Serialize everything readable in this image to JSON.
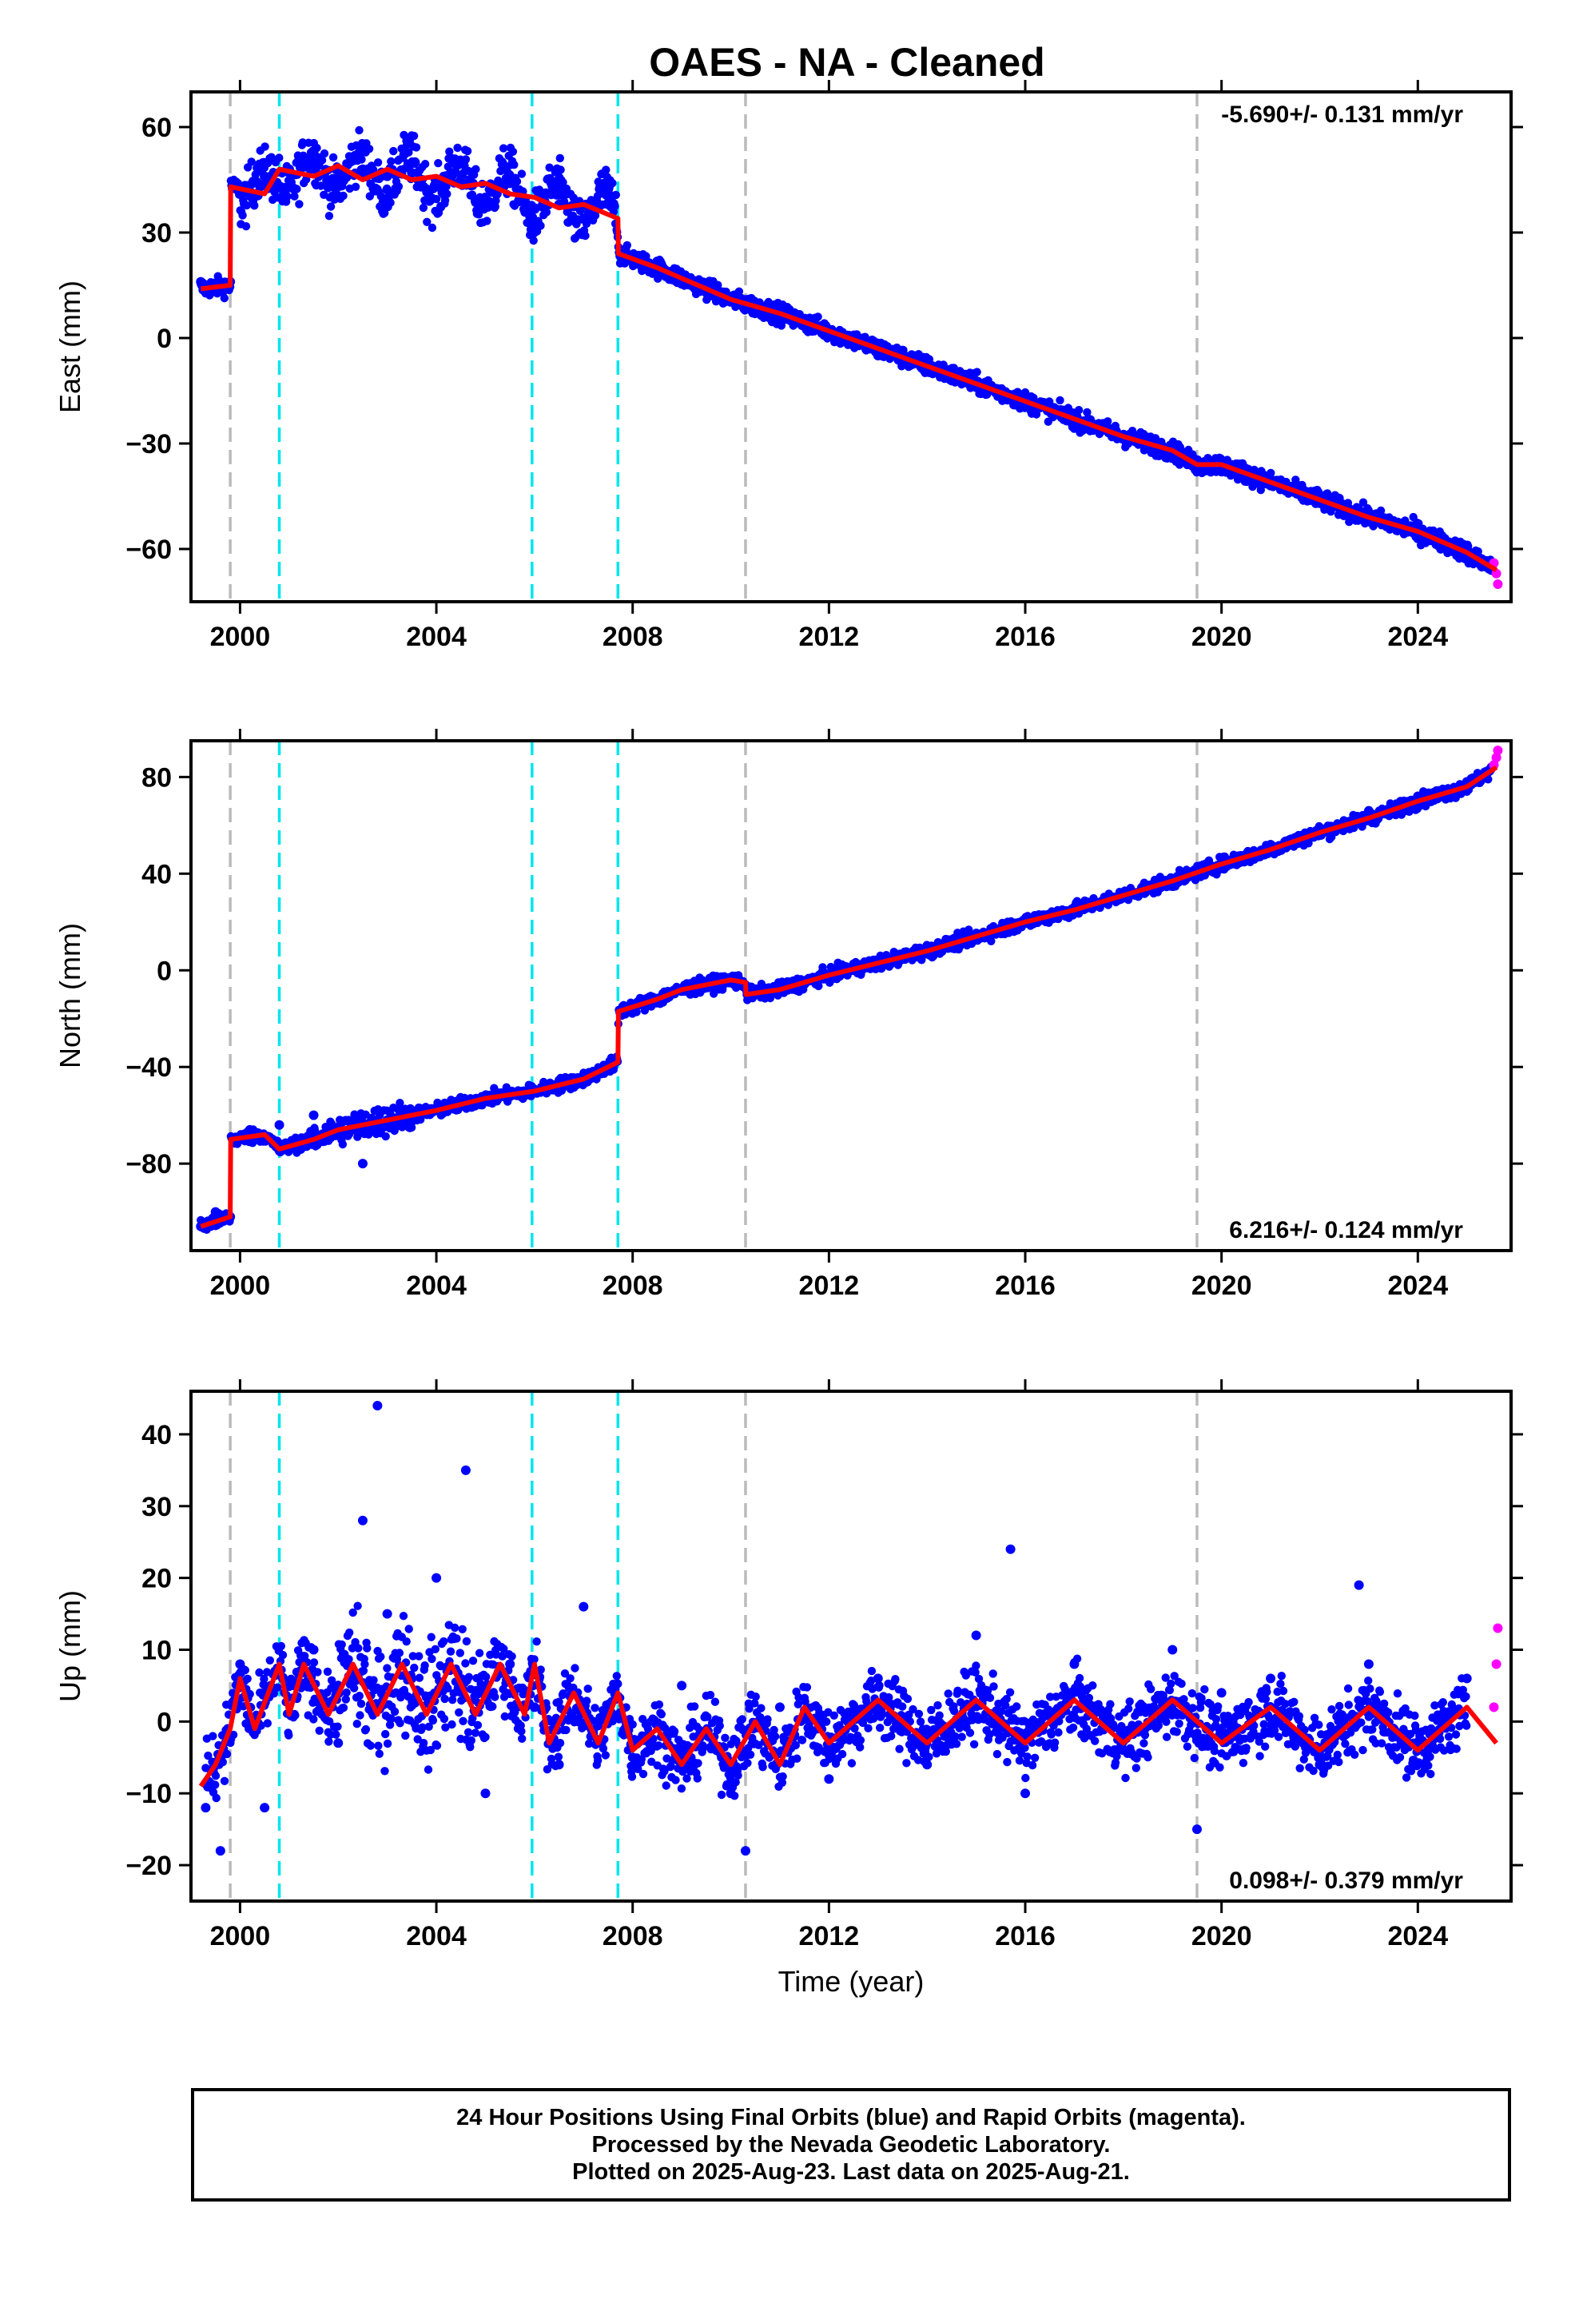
{
  "title": "OAES  - NA - Cleaned",
  "colors": {
    "final_orbits": "#0000ff",
    "rapid_orbits": "#ff00ff",
    "model": "#ff0000",
    "equipment_change": "#00e5ee",
    "other_event": "#bbbbbb"
  },
  "chart_data": [
    {
      "type": "scatter",
      "panel": "east",
      "ylabel": "East (mm)",
      "xlim": [
        1999.0,
        2025.9
      ],
      "ylim": [
        -75,
        70
      ],
      "yticks": [
        -60,
        -30,
        0,
        30,
        60
      ],
      "xticks": [
        2000,
        2004,
        2008,
        2012,
        2016,
        2020,
        2024
      ],
      "rate_text": "-5.690+/- 0.131 mm/yr",
      "rate_position": "top-right",
      "grid": false,
      "series": [
        {
          "role": "final_orbits",
          "x": [
            1999.2,
            1999.4,
            1999.6,
            1999.8,
            2000.0,
            2000.5,
            2001.0,
            2001.5,
            2002.0,
            2002.5,
            2003.0,
            2003.5,
            2004.0,
            2004.5,
            2005.0,
            2005.5,
            2006.0,
            2006.5,
            2007.0,
            2007.5,
            2007.8,
            2008.5,
            2009.0,
            2010.0,
            2011.0,
            2012.0,
            2013.0,
            2014.0,
            2015.0,
            2016.0,
            2017.0,
            2018.0,
            2019.0,
            2020.0,
            2021.0,
            2022.0,
            2023.0,
            2024.0,
            2025.0,
            2025.5
          ],
          "y": [
            16,
            14,
            15,
            16,
            43,
            46,
            48,
            50,
            45,
            48,
            46,
            47,
            43,
            45,
            40,
            44,
            37,
            38,
            34,
            38,
            25,
            20,
            16,
            11,
            6,
            1,
            -5,
            -8,
            -14,
            -19,
            -25,
            -28,
            -33,
            -38,
            -42,
            -47,
            -52,
            -57,
            -63,
            -66
          ]
        },
        {
          "role": "rapid_orbits",
          "x": [
            2025.55,
            2025.6,
            2025.63
          ],
          "y": [
            -64,
            -67,
            -70
          ]
        },
        {
          "role": "model",
          "x": [
            1999.2,
            1999.8,
            1999.81,
            2000.5,
            2000.8,
            2001.5,
            2002.0,
            2002.5,
            2003.0,
            2003.5,
            2004.0,
            2004.5,
            2005.0,
            2005.5,
            2006.0,
            2006.5,
            2007.0,
            2007.7,
            2007.71,
            2008.5,
            2009.0,
            2010.0,
            2011.0,
            2012.0,
            2013.0,
            2014.0,
            2015.0,
            2016.0,
            2017.0,
            2018.0,
            2019.0,
            2019.5,
            2020.0,
            2021.0,
            2022.0,
            2023.0,
            2024.0,
            2025.0,
            2025.6
          ],
          "y": [
            14,
            15,
            43,
            41,
            48,
            46,
            49,
            45,
            48,
            45,
            46,
            43,
            44,
            41,
            40,
            37,
            38,
            34,
            24,
            20,
            17,
            11,
            7,
            2,
            -3,
            -8,
            -13,
            -18,
            -23,
            -28,
            -32,
            -36,
            -36,
            -41,
            -46,
            -51,
            -55,
            -61,
            -66
          ]
        }
      ],
      "events": [
        {
          "type": "other_event",
          "x": 1999.8
        },
        {
          "type": "equipment_change",
          "x": 2000.8
        },
        {
          "type": "equipment_change",
          "x": 2005.95
        },
        {
          "type": "equipment_change",
          "x": 2007.7
        },
        {
          "type": "other_event",
          "x": 2010.3
        },
        {
          "type": "other_event",
          "x": 2019.5
        }
      ]
    },
    {
      "type": "scatter",
      "panel": "north",
      "ylabel": "North (mm)",
      "xlim": [
        1999.0,
        2025.9
      ],
      "ylim": [
        -116,
        95
      ],
      "yticks": [
        -80,
        -40,
        0,
        40,
        80
      ],
      "xticks": [
        2000,
        2004,
        2008,
        2012,
        2016,
        2020,
        2024
      ],
      "rate_text": "6.216+/- 0.124 mm/yr",
      "rate_position": "bottom-right",
      "grid": false,
      "series": [
        {
          "role": "final_orbits",
          "x": [
            1999.2,
            1999.5,
            1999.8,
            2000.2,
            2000.8,
            2001.5,
            2002.0,
            2002.5,
            2003.0,
            2004.0,
            2005.0,
            2006.0,
            2007.0,
            2007.6,
            2007.8,
            2008.5,
            2009.0,
            2010.0,
            2010.5,
            2011.0,
            2012.0,
            2013.0,
            2014.0,
            2015.0,
            2016.0,
            2017.0,
            2018.0,
            2019.0,
            2020.0,
            2021.0,
            2022.0,
            2023.0,
            2024.0,
            2025.0,
            2025.5
          ],
          "y": [
            -106,
            -100,
            -102,
            -66,
            -64,
            -60,
            -68,
            -80,
            -62,
            -58,
            -52,
            -50,
            -44,
            -40,
            -16,
            -12,
            -8,
            -4,
            -8,
            -6,
            -2,
            4,
            10,
            14,
            20,
            26,
            30,
            38,
            44,
            52,
            58,
            66,
            72,
            78,
            84
          ]
        },
        {
          "role": "rapid_orbits",
          "x": [
            2025.55,
            2025.6,
            2025.63
          ],
          "y": [
            85,
            88,
            91
          ]
        },
        {
          "role": "model",
          "x": [
            1999.2,
            1999.8,
            1999.81,
            2000.5,
            2000.8,
            2001.5,
            2002.0,
            2003.0,
            2004.0,
            2005.0,
            2006.0,
            2007.0,
            2007.7,
            2007.71,
            2008.5,
            2009.0,
            2010.0,
            2010.3,
            2010.31,
            2011.0,
            2012.0,
            2013.0,
            2014.0,
            2015.0,
            2016.0,
            2017.0,
            2018.0,
            2019.0,
            2020.0,
            2021.0,
            2022.0,
            2023.0,
            2024.0,
            2025.0,
            2025.6
          ],
          "y": [
            -106,
            -102,
            -70,
            -68,
            -74,
            -70,
            -66,
            -62,
            -58,
            -53,
            -50,
            -45,
            -38,
            -17,
            -12,
            -8,
            -4,
            -5,
            -10,
            -8,
            -2,
            3,
            8,
            14,
            20,
            25,
            31,
            37,
            44,
            50,
            57,
            63,
            70,
            76,
            84
          ]
        }
      ],
      "events": [
        {
          "type": "other_event",
          "x": 1999.8
        },
        {
          "type": "equipment_change",
          "x": 2000.8
        },
        {
          "type": "equipment_change",
          "x": 2005.95
        },
        {
          "type": "equipment_change",
          "x": 2007.7
        },
        {
          "type": "other_event",
          "x": 2010.3
        },
        {
          "type": "other_event",
          "x": 2019.5
        }
      ]
    },
    {
      "type": "scatter",
      "panel": "up",
      "ylabel": "Up (mm)",
      "xlabel": "Time (year)",
      "xlim": [
        1999.0,
        2025.9
      ],
      "ylim": [
        -25,
        46
      ],
      "yticks": [
        -20,
        -10,
        0,
        10,
        20,
        30,
        40
      ],
      "xticks": [
        2000,
        2004,
        2008,
        2012,
        2016,
        2020,
        2024
      ],
      "rate_text": "0.098+/- 0.379 mm/yr",
      "rate_position": "bottom-right",
      "grid": false,
      "series": [
        {
          "role": "final_orbits",
          "x": [
            1999.3,
            1999.6,
            2000.0,
            2000.5,
            2001.0,
            2001.5,
            2002.0,
            2002.5,
            2002.8,
            2003.0,
            2003.5,
            2004.0,
            2004.6,
            2005.0,
            2005.5,
            2006.0,
            2006.5,
            2007.0,
            2008.0,
            2009.0,
            2010.0,
            2010.3,
            2011.0,
            2012.0,
            2013.0,
            2014.0,
            2015.0,
            2015.7,
            2016.0,
            2017.0,
            2018.0,
            2019.0,
            2019.5,
            2020.0,
            2021.0,
            2022.0,
            2022.8,
            2023.0,
            2024.0,
            2025.0
          ],
          "y": [
            -12,
            -18,
            8,
            -12,
            5,
            10,
            -3,
            28,
            44,
            15,
            6,
            20,
            35,
            -10,
            8,
            2,
            -6,
            16,
            -5,
            5,
            -10,
            -18,
            2,
            -8,
            6,
            -6,
            12,
            24,
            -10,
            8,
            -4,
            10,
            -15,
            4,
            6,
            -6,
            19,
            8,
            -4,
            6
          ]
        },
        {
          "role": "rapid_orbits",
          "x": [
            2025.55,
            2025.6,
            2025.63
          ],
          "y": [
            2,
            8,
            13
          ]
        },
        {
          "role": "model",
          "x": [
            1999.2,
            1999.5,
            1999.8,
            2000.0,
            2000.3,
            2000.8,
            2001.0,
            2001.3,
            2001.8,
            2002.3,
            2002.8,
            2003.3,
            2003.8,
            2004.3,
            2004.8,
            2005.3,
            2005.8,
            2006.0,
            2006.3,
            2006.8,
            2007.3,
            2007.7,
            2008.0,
            2008.5,
            2009.0,
            2009.5,
            2010.0,
            2010.5,
            2011.0,
            2011.5,
            2012.0,
            2013.0,
            2014.0,
            2015.0,
            2016.0,
            2017.0,
            2018.0,
            2019.0,
            2020.0,
            2021.0,
            2022.0,
            2023.0,
            2024.0,
            2025.0,
            2025.6
          ],
          "y": [
            -9,
            -6,
            -1,
            6,
            -1,
            8,
            1,
            8,
            1,
            8,
            1,
            8,
            1,
            8,
            1,
            8,
            1,
            8,
            -3,
            4,
            -3,
            4,
            -4,
            -1,
            -6,
            -1,
            -6,
            0,
            -6,
            2,
            -3,
            3,
            -3,
            3,
            -3,
            3,
            -3,
            3,
            -3,
            2,
            -4,
            2,
            -4,
            2,
            -3
          ]
        }
      ],
      "events": [
        {
          "type": "other_event",
          "x": 1999.8
        },
        {
          "type": "equipment_change",
          "x": 2000.8
        },
        {
          "type": "equipment_change",
          "x": 2005.95
        },
        {
          "type": "equipment_change",
          "x": 2007.7
        },
        {
          "type": "other_event",
          "x": 2010.3
        },
        {
          "type": "other_event",
          "x": 2019.5
        }
      ]
    }
  ],
  "footer": {
    "line1": "24 Hour Positions Using Final Orbits (blue) and Rapid Orbits (magenta).",
    "line2": "Processed by the Nevada Geodetic Laboratory.",
    "line3": "Plotted on 2025-Aug-23. Last data on 2025-Aug-21."
  }
}
